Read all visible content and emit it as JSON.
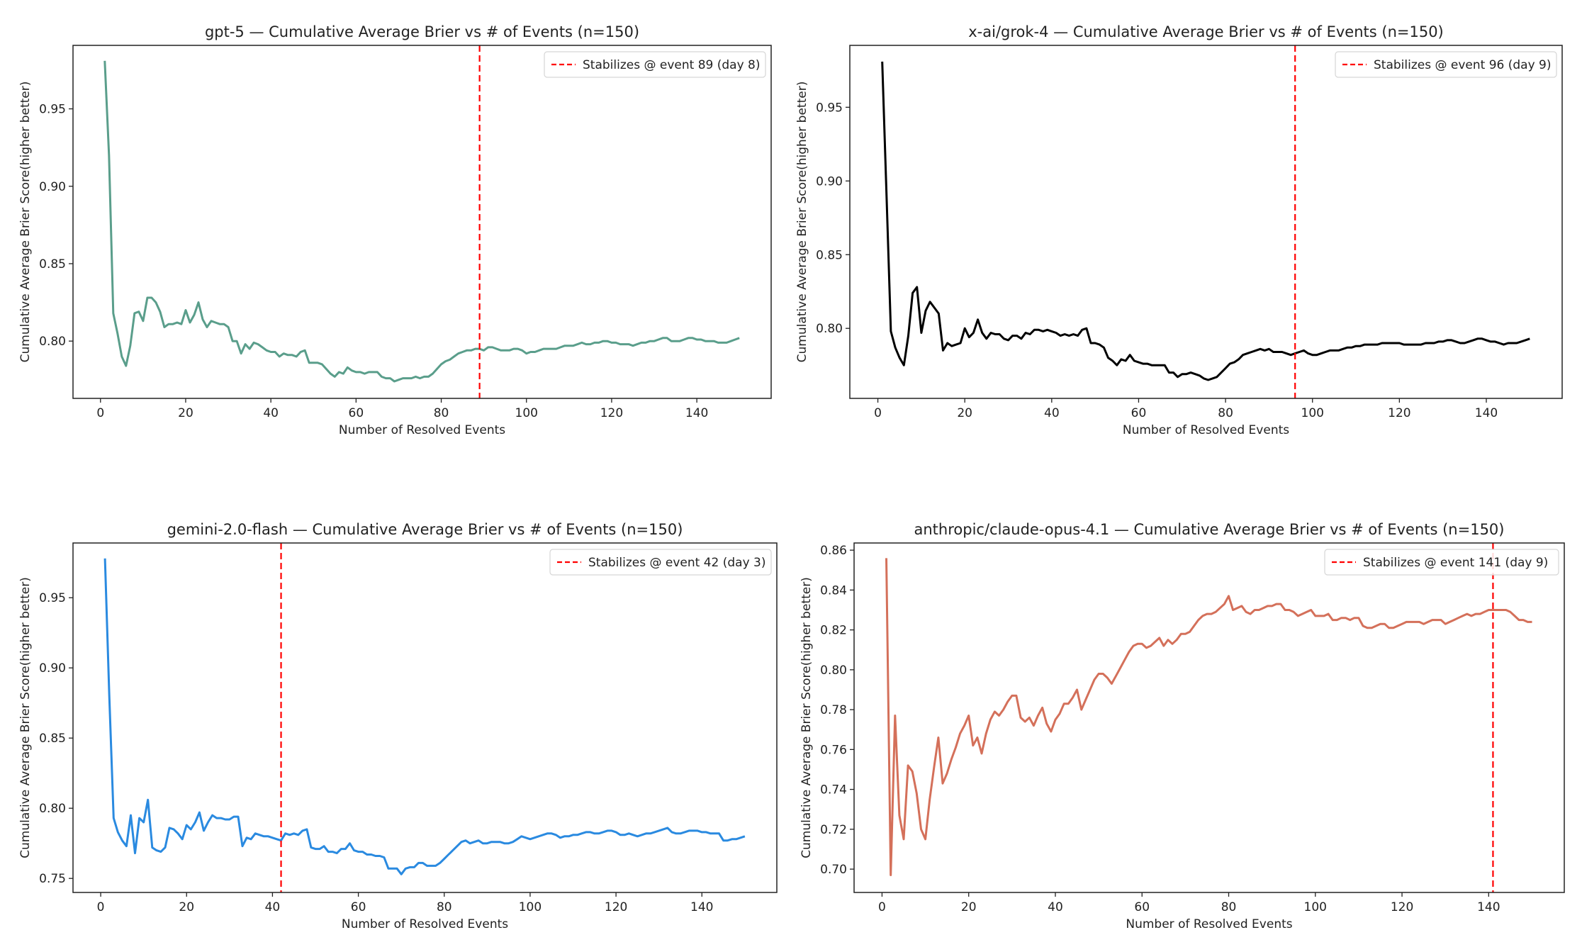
{
  "chart_data": [
    {
      "type": "line",
      "title": "gpt-5 — Cumulative Average Brier vs # of Events (n=150)",
      "xlabel": "Number of Resolved Events",
      "ylabel": "Cumulative Average Brier Score(higher better)",
      "xlim": [
        -6.45,
        157.45
      ],
      "ylim": [
        0.763,
        0.991
      ],
      "xticks": [
        0,
        20,
        40,
        60,
        80,
        100,
        120,
        140
      ],
      "yticks": [
        "0.80",
        "0.85",
        "0.90",
        "0.95"
      ],
      "grid": false,
      "legend_placement": "top-right",
      "color": "#5a9e8b",
      "stabilize_x": 89,
      "stabilize_label": "Stabilizes @ event 89 (day 8)",
      "stabilize_color": "#ff0000",
      "x_start": 1,
      "values": [
        0.981,
        0.92,
        0.818,
        0.805,
        0.79,
        0.784,
        0.797,
        0.818,
        0.819,
        0.813,
        0.828,
        0.828,
        0.825,
        0.819,
        0.809,
        0.811,
        0.811,
        0.812,
        0.811,
        0.82,
        0.812,
        0.817,
        0.825,
        0.814,
        0.809,
        0.813,
        0.812,
        0.811,
        0.811,
        0.809,
        0.8,
        0.8,
        0.792,
        0.798,
        0.795,
        0.799,
        0.798,
        0.796,
        0.794,
        0.793,
        0.793,
        0.79,
        0.792,
        0.791,
        0.791,
        0.79,
        0.793,
        0.794,
        0.786,
        0.786,
        0.786,
        0.785,
        0.782,
        0.779,
        0.777,
        0.78,
        0.779,
        0.783,
        0.781,
        0.78,
        0.78,
        0.779,
        0.78,
        0.78,
        0.78,
        0.777,
        0.776,
        0.776,
        0.774,
        0.775,
        0.776,
        0.776,
        0.776,
        0.777,
        0.776,
        0.777,
        0.777,
        0.779,
        0.782,
        0.785,
        0.787,
        0.788,
        0.79,
        0.792,
        0.793,
        0.794,
        0.794,
        0.795,
        0.795,
        0.794,
        0.796,
        0.796,
        0.795,
        0.794,
        0.794,
        0.794,
        0.795,
        0.795,
        0.794,
        0.792,
        0.793,
        0.793,
        0.794,
        0.795,
        0.795,
        0.795,
        0.795,
        0.796,
        0.797,
        0.797,
        0.797,
        0.798,
        0.799,
        0.798,
        0.798,
        0.799,
        0.799,
        0.8,
        0.8,
        0.799,
        0.799,
        0.798,
        0.798,
        0.798,
        0.797,
        0.798,
        0.799,
        0.799,
        0.8,
        0.8,
        0.801,
        0.802,
        0.802,
        0.8,
        0.8,
        0.8,
        0.801,
        0.802,
        0.802,
        0.801,
        0.801,
        0.8,
        0.8,
        0.8,
        0.799,
        0.799,
        0.799,
        0.8,
        0.801,
        0.802
      ]
    },
    {
      "type": "line",
      "title": "x-ai/grok-4 — Cumulative Average Brier vs # of Events (n=150)",
      "xlabel": "Number of Resolved Events",
      "ylabel": "Cumulative Average Brier Score(higher better)",
      "xlim": [
        -6.45,
        157.45
      ],
      "ylim": [
        0.7525,
        0.992
      ],
      "xticks": [
        0,
        20,
        40,
        60,
        80,
        100,
        120,
        140
      ],
      "yticks": [
        "0.80",
        "0.85",
        "0.90",
        "0.95"
      ],
      "grid": false,
      "legend_placement": "top-right",
      "color": "#000000",
      "stabilize_x": 96,
      "stabilize_label": "Stabilizes @ event 96 (day 9)",
      "stabilize_color": "#ff0000",
      "x_start": 1,
      "values": [
        0.981,
        0.89,
        0.798,
        0.787,
        0.78,
        0.775,
        0.795,
        0.824,
        0.828,
        0.797,
        0.812,
        0.818,
        0.814,
        0.81,
        0.785,
        0.79,
        0.788,
        0.789,
        0.79,
        0.8,
        0.794,
        0.797,
        0.806,
        0.797,
        0.793,
        0.797,
        0.796,
        0.796,
        0.793,
        0.792,
        0.795,
        0.795,
        0.793,
        0.797,
        0.796,
        0.799,
        0.799,
        0.798,
        0.799,
        0.798,
        0.797,
        0.795,
        0.796,
        0.795,
        0.796,
        0.795,
        0.799,
        0.8,
        0.79,
        0.79,
        0.789,
        0.787,
        0.78,
        0.778,
        0.775,
        0.779,
        0.778,
        0.782,
        0.778,
        0.777,
        0.776,
        0.776,
        0.775,
        0.775,
        0.775,
        0.775,
        0.77,
        0.77,
        0.767,
        0.769,
        0.769,
        0.77,
        0.769,
        0.768,
        0.766,
        0.765,
        0.766,
        0.767,
        0.77,
        0.773,
        0.776,
        0.777,
        0.779,
        0.782,
        0.783,
        0.784,
        0.785,
        0.786,
        0.785,
        0.786,
        0.784,
        0.784,
        0.784,
        0.783,
        0.782,
        0.783,
        0.784,
        0.785,
        0.783,
        0.782,
        0.782,
        0.783,
        0.784,
        0.785,
        0.785,
        0.785,
        0.786,
        0.787,
        0.787,
        0.788,
        0.788,
        0.789,
        0.789,
        0.789,
        0.789,
        0.79,
        0.79,
        0.79,
        0.79,
        0.79,
        0.789,
        0.789,
        0.789,
        0.789,
        0.789,
        0.79,
        0.79,
        0.79,
        0.791,
        0.791,
        0.792,
        0.792,
        0.791,
        0.79,
        0.79,
        0.791,
        0.792,
        0.793,
        0.793,
        0.792,
        0.791,
        0.791,
        0.79,
        0.789,
        0.79,
        0.79,
        0.79,
        0.791,
        0.792,
        0.793
      ]
    },
    {
      "type": "line",
      "title": "gemini-2.0-flash — Cumulative Average Brier vs # of Events (n=150)",
      "xlabel": "Number of Resolved Events",
      "ylabel": "Cumulative Average Brier Score(higher better)",
      "xlim": [
        -6.45,
        157.45
      ],
      "ylim": [
        0.74,
        0.989
      ],
      "xticks": [
        0,
        20,
        40,
        60,
        80,
        100,
        120,
        140
      ],
      "yticks": [
        "0.75",
        "0.80",
        "0.85",
        "0.90",
        "0.95"
      ],
      "grid": false,
      "legend_placement": "top-right",
      "color": "#2a8ae0",
      "stabilize_x": 42,
      "stabilize_label": "Stabilizes @ event 42 (day 3)",
      "stabilize_color": "#ff0000",
      "x_start": 1,
      "values": [
        0.978,
        0.88,
        0.793,
        0.783,
        0.777,
        0.773,
        0.795,
        0.768,
        0.793,
        0.79,
        0.806,
        0.772,
        0.77,
        0.769,
        0.772,
        0.786,
        0.785,
        0.782,
        0.778,
        0.788,
        0.785,
        0.79,
        0.797,
        0.784,
        0.79,
        0.795,
        0.793,
        0.793,
        0.792,
        0.792,
        0.794,
        0.794,
        0.773,
        0.779,
        0.778,
        0.782,
        0.781,
        0.78,
        0.78,
        0.779,
        0.778,
        0.777,
        0.782,
        0.781,
        0.782,
        0.781,
        0.784,
        0.785,
        0.772,
        0.771,
        0.771,
        0.773,
        0.769,
        0.769,
        0.768,
        0.771,
        0.771,
        0.775,
        0.77,
        0.769,
        0.769,
        0.767,
        0.767,
        0.766,
        0.766,
        0.765,
        0.757,
        0.757,
        0.757,
        0.753,
        0.757,
        0.758,
        0.758,
        0.761,
        0.761,
        0.759,
        0.759,
        0.759,
        0.761,
        0.764,
        0.767,
        0.77,
        0.773,
        0.776,
        0.777,
        0.775,
        0.776,
        0.777,
        0.775,
        0.775,
        0.776,
        0.776,
        0.776,
        0.775,
        0.775,
        0.776,
        0.778,
        0.78,
        0.779,
        0.778,
        0.779,
        0.78,
        0.781,
        0.782,
        0.782,
        0.781,
        0.779,
        0.78,
        0.78,
        0.781,
        0.781,
        0.782,
        0.783,
        0.783,
        0.782,
        0.782,
        0.783,
        0.784,
        0.784,
        0.783,
        0.781,
        0.781,
        0.782,
        0.781,
        0.78,
        0.781,
        0.782,
        0.782,
        0.783,
        0.784,
        0.785,
        0.786,
        0.783,
        0.782,
        0.782,
        0.783,
        0.784,
        0.784,
        0.784,
        0.783,
        0.783,
        0.782,
        0.782,
        0.782,
        0.777,
        0.777,
        0.778,
        0.778,
        0.779,
        0.78
      ]
    },
    {
      "type": "line",
      "title": "anthropic/claude-opus-4.1 — Cumulative Average Brier vs # of Events (n=150)",
      "xlabel": "Number of Resolved Events",
      "ylabel": "Cumulative Average Brier Score(higher better)",
      "xlim": [
        -6.45,
        157.45
      ],
      "ylim": [
        0.6883,
        0.8636
      ],
      "xticks": [
        0,
        20,
        40,
        60,
        80,
        100,
        120,
        140
      ],
      "yticks": [
        "0.70",
        "0.72",
        "0.74",
        "0.76",
        "0.78",
        "0.80",
        "0.82",
        "0.84",
        "0.86"
      ],
      "grid": false,
      "legend_placement": "top-right",
      "color": "#d4705a",
      "stabilize_x": 141,
      "stabilize_label": "Stabilizes @ event 141 (day 9)",
      "stabilize_color": "#ff0000",
      "x_start": 1,
      "values": [
        0.856,
        0.697,
        0.777,
        0.727,
        0.715,
        0.752,
        0.749,
        0.738,
        0.72,
        0.715,
        0.735,
        0.751,
        0.766,
        0.743,
        0.748,
        0.755,
        0.761,
        0.768,
        0.772,
        0.777,
        0.762,
        0.766,
        0.758,
        0.768,
        0.775,
        0.779,
        0.777,
        0.78,
        0.784,
        0.787,
        0.787,
        0.776,
        0.774,
        0.776,
        0.772,
        0.777,
        0.781,
        0.773,
        0.769,
        0.775,
        0.778,
        0.783,
        0.783,
        0.786,
        0.79,
        0.78,
        0.785,
        0.79,
        0.795,
        0.798,
        0.798,
        0.796,
        0.793,
        0.797,
        0.801,
        0.805,
        0.809,
        0.812,
        0.813,
        0.813,
        0.811,
        0.812,
        0.814,
        0.816,
        0.812,
        0.815,
        0.813,
        0.815,
        0.818,
        0.818,
        0.819,
        0.822,
        0.825,
        0.827,
        0.828,
        0.828,
        0.829,
        0.831,
        0.833,
        0.837,
        0.83,
        0.831,
        0.832,
        0.829,
        0.828,
        0.83,
        0.83,
        0.831,
        0.832,
        0.832,
        0.833,
        0.833,
        0.83,
        0.83,
        0.829,
        0.827,
        0.828,
        0.829,
        0.83,
        0.827,
        0.827,
        0.827,
        0.828,
        0.825,
        0.825,
        0.826,
        0.826,
        0.825,
        0.826,
        0.826,
        0.822,
        0.821,
        0.821,
        0.822,
        0.823,
        0.823,
        0.821,
        0.821,
        0.822,
        0.823,
        0.824,
        0.824,
        0.824,
        0.824,
        0.823,
        0.824,
        0.825,
        0.825,
        0.825,
        0.823,
        0.824,
        0.825,
        0.826,
        0.827,
        0.828,
        0.827,
        0.828,
        0.828,
        0.829,
        0.83,
        0.83,
        0.83,
        0.83,
        0.83,
        0.829,
        0.827,
        0.825,
        0.825,
        0.824,
        0.824
      ]
    }
  ]
}
